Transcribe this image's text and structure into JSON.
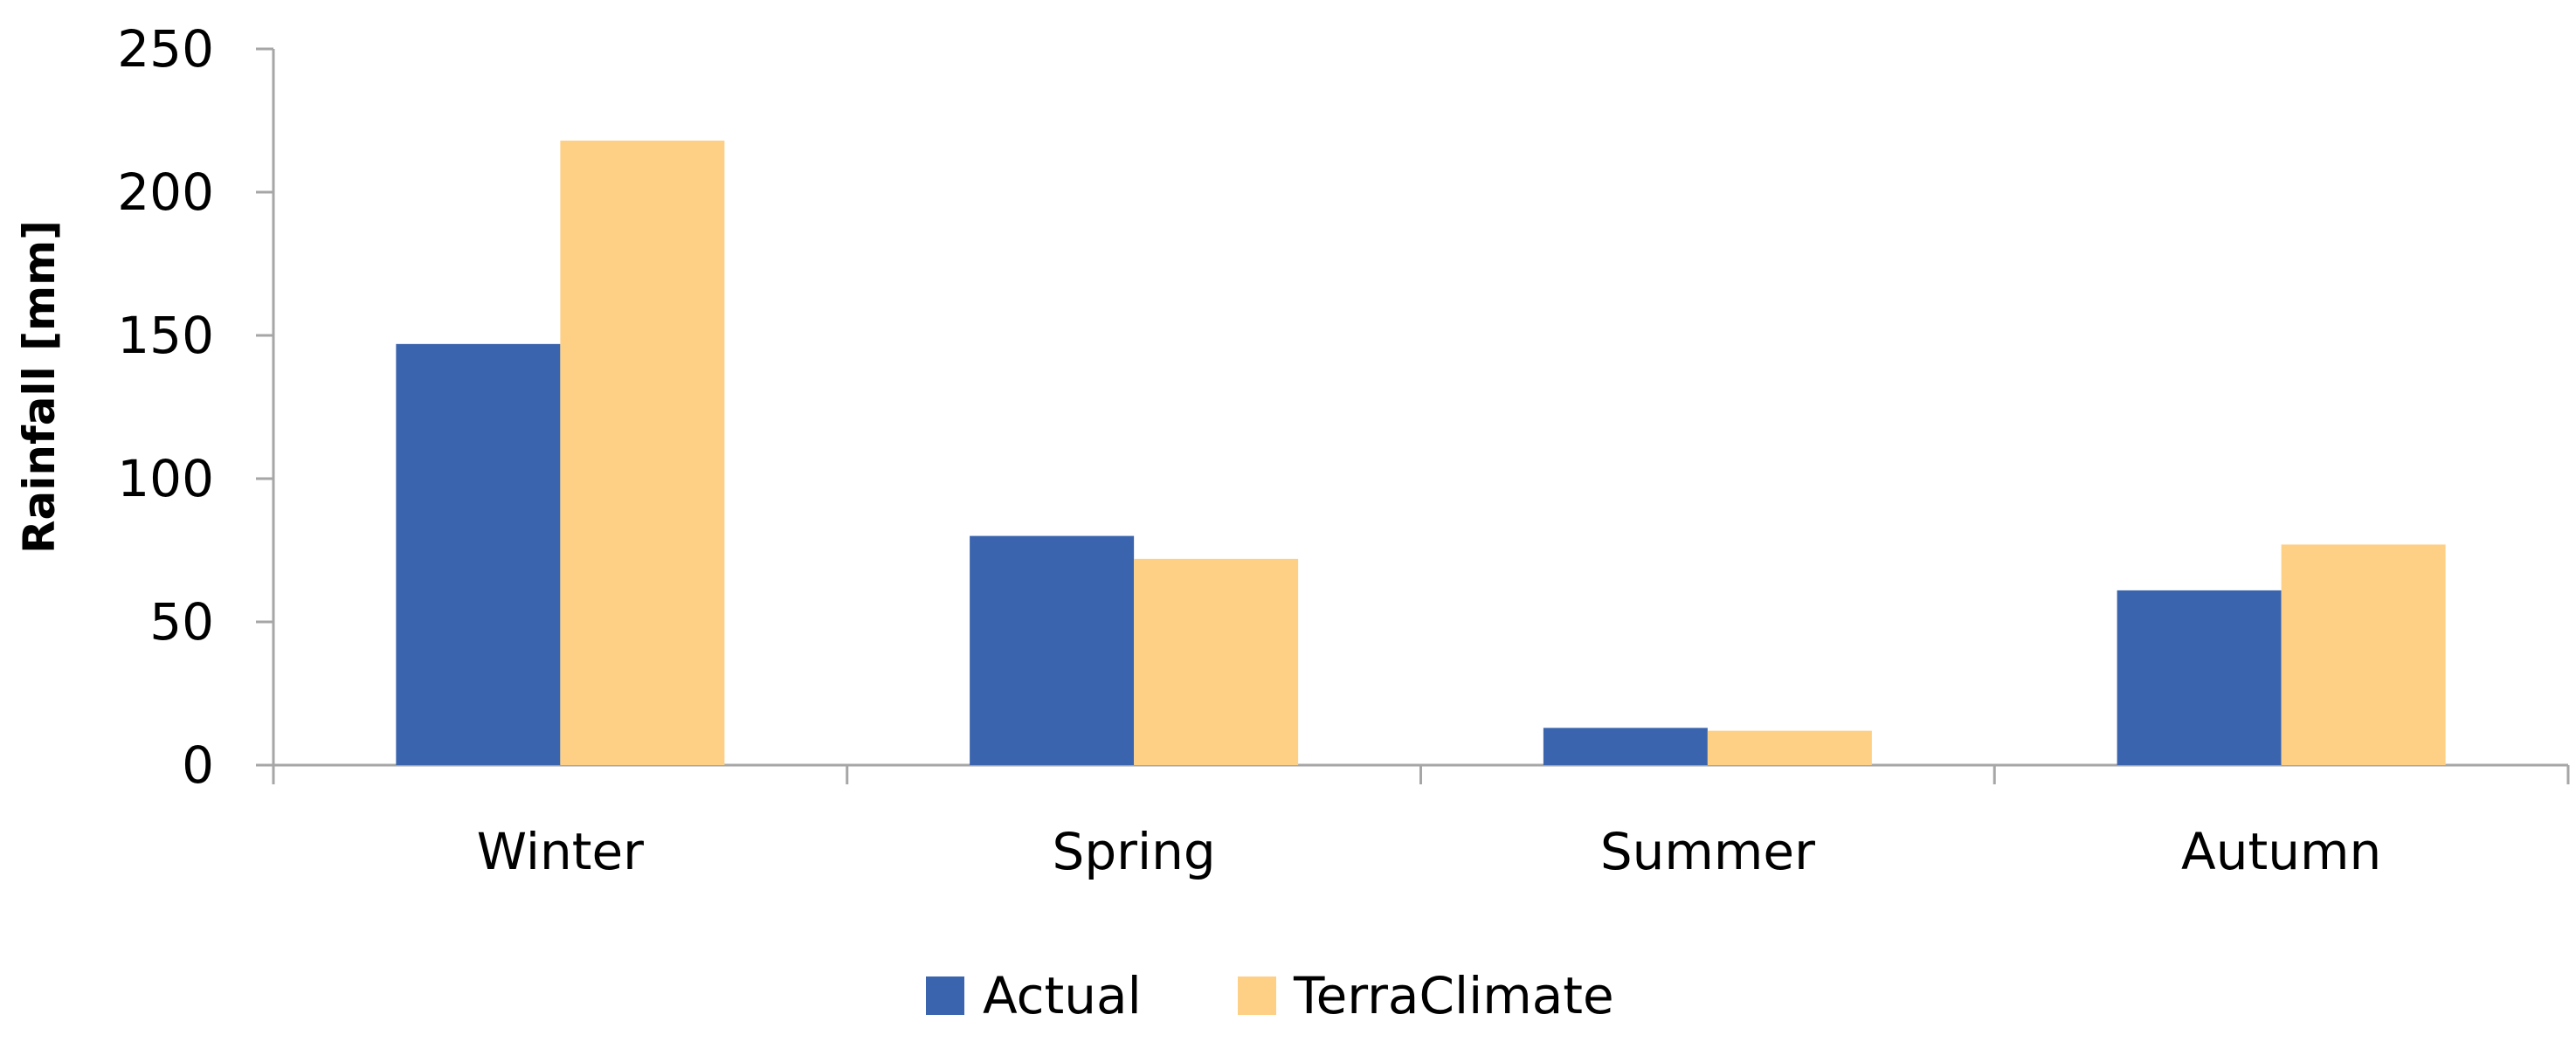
{
  "chart_data": {
    "type": "bar",
    "title": "",
    "xlabel": "",
    "ylabel": "Rainfall [mm]",
    "categories": [
      "Winter",
      "Spring",
      "Summer",
      "Autumn"
    ],
    "series": [
      {
        "name": "Actual",
        "color": "#3A64AD",
        "values": [
          147,
          80,
          13,
          61
        ]
      },
      {
        "name": "TerraClimate",
        "color": "#FDD086",
        "values": [
          218,
          72,
          12,
          77
        ]
      }
    ],
    "ylim": [
      0,
      250
    ],
    "yticks": [
      0,
      50,
      100,
      150,
      200,
      250
    ],
    "grid": false,
    "legend_position": "bottom-center",
    "axis_color": "#A6A6A6"
  }
}
